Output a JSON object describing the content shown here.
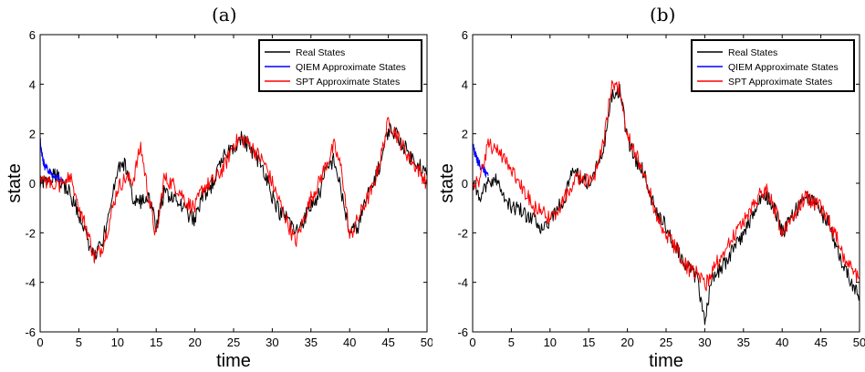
{
  "chart_data": [
    {
      "caption": "(a)",
      "type": "line",
      "xlabel": "time",
      "ylabel": "state",
      "xlim": [
        0,
        50
      ],
      "ylim": [
        -6,
        6
      ],
      "xticks": [
        "0",
        "5",
        "10",
        "15",
        "20",
        "25",
        "30",
        "35",
        "40",
        "45",
        "50"
      ],
      "yticks": [
        "6",
        "4",
        "2",
        "0",
        "-2",
        "-4",
        "-6"
      ],
      "grid": false,
      "legend_position": "top-right",
      "series": [
        {
          "name": "Real States",
          "color": "#000000",
          "x": [
            0,
            1,
            2,
            3,
            4,
            5,
            6,
            7,
            8,
            9,
            10,
            11,
            12,
            13,
            14,
            15,
            16,
            17,
            18,
            19,
            20,
            21,
            22,
            23,
            24,
            25,
            26,
            27,
            28,
            29,
            30,
            31,
            32,
            33,
            34,
            35,
            36,
            37,
            38,
            39,
            40,
            41,
            42,
            43,
            44,
            45,
            46,
            47,
            48,
            49,
            50
          ],
          "y": [
            0,
            0.2,
            0.3,
            0,
            -0.5,
            -1.2,
            -2.2,
            -3,
            -2.4,
            -1.2,
            0.5,
            0.8,
            -0.6,
            -0.8,
            -0.5,
            -1.8,
            -0.4,
            -0.5,
            -0.8,
            -1.2,
            -1.5,
            -0.5,
            -0.2,
            0.5,
            1.2,
            1.5,
            1.8,
            1.5,
            1.0,
            0.5,
            -0.5,
            -1.2,
            -1.4,
            -2.0,
            -1.5,
            -0.9,
            -0.5,
            0.5,
            1.0,
            -0.5,
            -2.0,
            -1.8,
            -0.8,
            0,
            0.8,
            2.2,
            2.0,
            1.5,
            1.0,
            0.8,
            0.3
          ]
        },
        {
          "name": "QIEM Approximate States",
          "color": "#0000ff",
          "x": [
            0,
            0.3,
            0.6,
            1,
            1.5,
            2,
            2.5,
            3
          ],
          "y": [
            1.8,
            1.0,
            0.7,
            0.5,
            0.4,
            0.3,
            0.2,
            0.1
          ]
        },
        {
          "name": "SPT Approximate States",
          "color": "#ff0000",
          "x": [
            0,
            1,
            2,
            3,
            4,
            5,
            6,
            7,
            8,
            9,
            10,
            11,
            12,
            13,
            14,
            15,
            16,
            17,
            18,
            19,
            20,
            21,
            22,
            23,
            24,
            25,
            26,
            27,
            28,
            29,
            30,
            31,
            32,
            33,
            34,
            35,
            36,
            37,
            38,
            39,
            40,
            41,
            42,
            43,
            44,
            45,
            46,
            47,
            48,
            49,
            50
          ],
          "y": [
            0,
            0.1,
            0,
            -0.1,
            0.3,
            -1.0,
            -1.8,
            -3.0,
            -2.6,
            -1.5,
            -0.2,
            0.2,
            0.1,
            1.5,
            -0.5,
            -2.2,
            0.2,
            0,
            -0.3,
            -0.8,
            -1.0,
            -0.2,
            0,
            0.3,
            0.8,
            1.6,
            1.8,
            1.6,
            1.2,
            0.8,
            0,
            -0.8,
            -1.6,
            -2.4,
            -1.5,
            -0.6,
            0,
            0.8,
            1.5,
            0.5,
            -2.2,
            -1.5,
            -0.8,
            -0.2,
            1.0,
            2.5,
            2.0,
            1.4,
            0.9,
            0.5,
            0
          ]
        }
      ]
    },
    {
      "caption": "(b)",
      "type": "line",
      "xlabel": "time",
      "ylabel": "state",
      "xlim": [
        0,
        50
      ],
      "ylim": [
        -6,
        6
      ],
      "xticks": [
        "0",
        "5",
        "10",
        "15",
        "20",
        "25",
        "30",
        "35",
        "40",
        "45",
        "50"
      ],
      "yticks": [
        "6",
        "4",
        "2",
        "0",
        "-2",
        "-4",
        "-6"
      ],
      "grid": false,
      "legend_position": "top-right",
      "series": [
        {
          "name": "Real States",
          "color": "#000000",
          "x": [
            0,
            1,
            2,
            3,
            4,
            5,
            6,
            7,
            8,
            9,
            10,
            11,
            12,
            13,
            14,
            15,
            16,
            17,
            18,
            19,
            20,
            21,
            22,
            23,
            24,
            25,
            26,
            27,
            28,
            29,
            30,
            31,
            32,
            33,
            34,
            35,
            36,
            37,
            38,
            39,
            40,
            41,
            42,
            43,
            44,
            45,
            46,
            47,
            48,
            49,
            50
          ],
          "y": [
            0,
            -0.5,
            0,
            0.3,
            -0.5,
            -1.0,
            -1.0,
            -1.3,
            -1.5,
            -1.8,
            -1.5,
            -1.0,
            -0.5,
            0.5,
            0.2,
            0,
            0.8,
            1.5,
            3.5,
            3.8,
            1.8,
            1.0,
            0.5,
            -0.5,
            -1.2,
            -1.8,
            -2.5,
            -3.0,
            -3.5,
            -3.8,
            -5.5,
            -3.8,
            -3.5,
            -3.0,
            -2.5,
            -2.0,
            -1.5,
            -0.8,
            -0.5,
            -1.0,
            -2.0,
            -1.5,
            -1.0,
            -0.5,
            -0.8,
            -1.2,
            -1.5,
            -2.5,
            -3.5,
            -4.0,
            -4.5
          ]
        },
        {
          "name": "QIEM Approximate States",
          "color": "#0000ff",
          "x": [
            0,
            0.3,
            0.6,
            1,
            1.5,
            2
          ],
          "y": [
            1.6,
            1.2,
            0.9,
            0.7,
            0.5,
            0.3
          ]
        },
        {
          "name": "SPT Approximate States",
          "color": "#ff0000",
          "x": [
            0,
            1,
            2,
            3,
            4,
            5,
            6,
            7,
            8,
            9,
            10,
            11,
            12,
            13,
            14,
            15,
            16,
            17,
            18,
            19,
            20,
            21,
            22,
            23,
            24,
            25,
            26,
            27,
            28,
            29,
            30,
            31,
            32,
            33,
            34,
            35,
            36,
            37,
            38,
            39,
            40,
            41,
            42,
            43,
            44,
            45,
            46,
            47,
            48,
            49,
            50
          ],
          "y": [
            0,
            0.2,
            1.5,
            1.5,
            1.0,
            0.5,
            0,
            -0.5,
            -1.0,
            -1.2,
            -1.4,
            -1.2,
            -0.5,
            0,
            0.3,
            0,
            0.5,
            1.8,
            4.0,
            3.8,
            2.0,
            1.2,
            0.5,
            -0.5,
            -1.5,
            -2.0,
            -2.5,
            -3.0,
            -3.5,
            -3.6,
            -4.2,
            -3.5,
            -3.0,
            -2.5,
            -2.0,
            -1.5,
            -1.0,
            -0.5,
            -0.2,
            -1.0,
            -2.0,
            -1.5,
            -1.0,
            -0.5,
            -0.8,
            -1.0,
            -1.5,
            -2.2,
            -3.0,
            -3.5,
            -3.8
          ]
        }
      ]
    }
  ]
}
